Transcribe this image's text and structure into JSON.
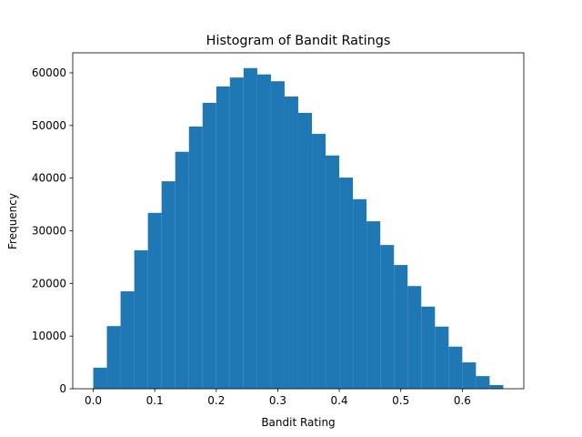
{
  "chart_data": {
    "type": "histogram",
    "title": "Histogram of Bandit Ratings",
    "xlabel": "Bandit Rating",
    "ylabel": "Frequency",
    "bins": [
      0,
      0.0222,
      0.0444,
      0.0667,
      0.0889,
      0.1111,
      0.1333,
      0.1556,
      0.1778,
      0.2,
      0.2222,
      0.2444,
      0.2667,
      0.2889,
      0.3111,
      0.3333,
      0.3556,
      0.3778,
      0.4,
      0.4222,
      0.4444,
      0.4667,
      0.4889,
      0.5111,
      0.5333,
      0.5556,
      0.5778,
      0.6,
      0.6222,
      0.6444,
      0.6667
    ],
    "counts": [
      4000,
      11900,
      18500,
      26300,
      33400,
      39400,
      45000,
      49800,
      54300,
      57400,
      59100,
      60900,
      59700,
      58400,
      55500,
      52400,
      48400,
      44300,
      40100,
      36000,
      31800,
      27300,
      23500,
      19500,
      15600,
      11800,
      8000,
      5000,
      2400,
      700
    ],
    "color": "#1f77b4",
    "xlim": [
      -0.0333,
      0.7
    ],
    "xticks": [
      {
        "value": 0,
        "label": "0.0"
      },
      0.1,
      0.2,
      0.3,
      0.4,
      0.5,
      0.6
    ],
    "ylim": [
      0,
      63800
    ],
    "yticks": [
      0,
      10000,
      20000,
      30000,
      40000,
      50000,
      60000
    ]
  }
}
